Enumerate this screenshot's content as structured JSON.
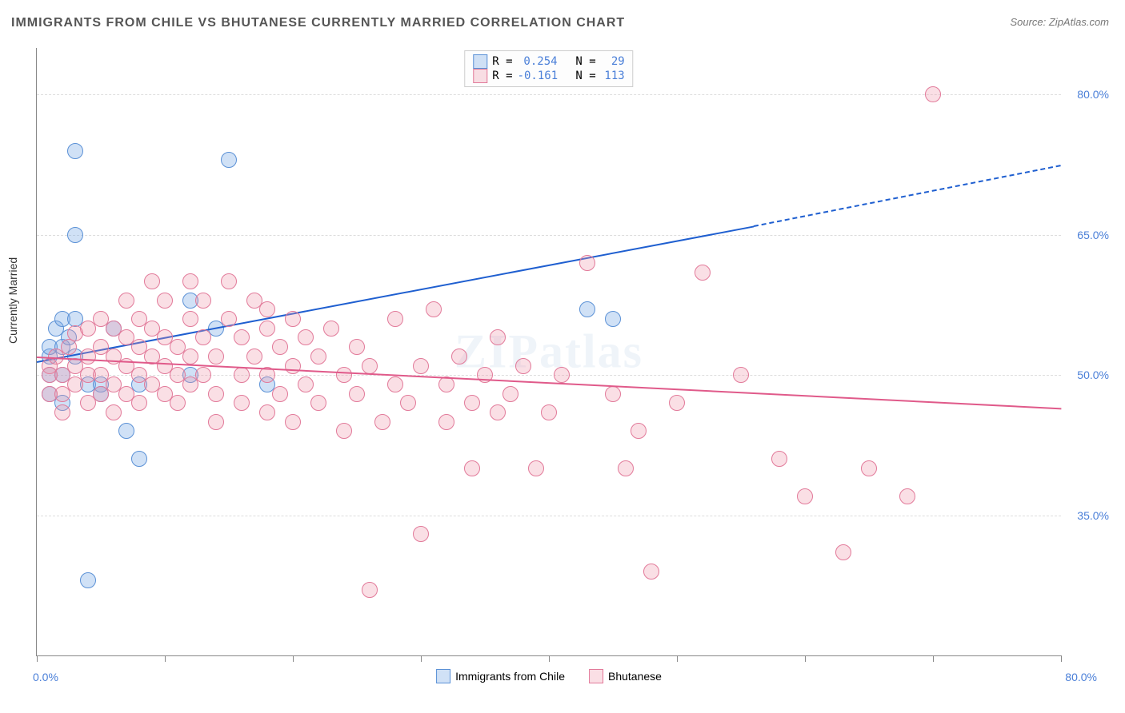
{
  "title": "IMMIGRANTS FROM CHILE VS BHUTANESE CURRENTLY MARRIED CORRELATION CHART",
  "source": "Source: ZipAtlas.com",
  "watermark": "ZIPatlas",
  "y_axis_label": "Currently Married",
  "chart": {
    "type": "scatter",
    "background_color": "#ffffff",
    "grid_color": "#dddddd",
    "axis_color": "#888888",
    "tick_label_color": "#4a7fd8",
    "tick_fontsize": 14,
    "title_fontsize": 16,
    "xlim": [
      0,
      80
    ],
    "ylim": [
      20,
      85
    ],
    "x_tick_start": "0.0%",
    "x_tick_end": "80.0%",
    "y_ticks": [
      {
        "value": 35,
        "label": "35.0%"
      },
      {
        "value": 50,
        "label": "50.0%"
      },
      {
        "value": 65,
        "label": "65.0%"
      },
      {
        "value": 80,
        "label": "80.0%"
      }
    ],
    "x_tick_positions": [
      0,
      10,
      20,
      30,
      40,
      50,
      60,
      70,
      80
    ],
    "series": [
      {
        "name": "Immigrants from Chile",
        "label": "Immigrants from Chile",
        "marker_fill": "rgba(120,170,230,0.35)",
        "marker_stroke": "#5b91d6",
        "marker_radius": 9,
        "line_color": "#1f5fd0",
        "line_width": 2,
        "R": "0.254",
        "N": "29",
        "trend_solid": {
          "x1": 0,
          "y1": 51.5,
          "x2": 56,
          "y2": 66
        },
        "trend_dashed": {
          "x1": 56,
          "y1": 66,
          "x2": 80,
          "y2": 72.5
        },
        "points": [
          [
            1,
            52
          ],
          [
            1,
            50
          ],
          [
            1,
            48
          ],
          [
            1,
            53
          ],
          [
            1.5,
            55
          ],
          [
            2,
            56
          ],
          [
            2,
            53
          ],
          [
            2,
            50
          ],
          [
            2,
            47
          ],
          [
            2.5,
            54
          ],
          [
            3,
            52
          ],
          [
            3,
            74
          ],
          [
            3,
            65
          ],
          [
            3,
            56
          ],
          [
            4,
            49
          ],
          [
            4,
            28
          ],
          [
            5,
            49
          ],
          [
            5,
            48
          ],
          [
            6,
            55
          ],
          [
            7,
            44
          ],
          [
            8,
            41
          ],
          [
            8,
            49
          ],
          [
            12,
            58
          ],
          [
            12,
            50
          ],
          [
            14,
            55
          ],
          [
            15,
            73
          ],
          [
            18,
            49
          ],
          [
            43,
            57
          ],
          [
            45,
            56
          ]
        ]
      },
      {
        "name": "Bhutanese",
        "label": "Bhutanese",
        "marker_fill": "rgba(240,150,170,0.30)",
        "marker_stroke": "#e27a9a",
        "marker_radius": 9,
        "line_color": "#e05a8a",
        "line_width": 2,
        "R": "-0.161",
        "N": "113",
        "trend_solid": {
          "x1": 0,
          "y1": 52,
          "x2": 80,
          "y2": 46.5
        },
        "points": [
          [
            1,
            51
          ],
          [
            1,
            50
          ],
          [
            1,
            48
          ],
          [
            1.5,
            52
          ],
          [
            2,
            50
          ],
          [
            2,
            48
          ],
          [
            2,
            46
          ],
          [
            2.5,
            53
          ],
          [
            3,
            51
          ],
          [
            3,
            49
          ],
          [
            3,
            54.5
          ],
          [
            4,
            55
          ],
          [
            4,
            52
          ],
          [
            4,
            50
          ],
          [
            4,
            47
          ],
          [
            5,
            56
          ],
          [
            5,
            53
          ],
          [
            5,
            50
          ],
          [
            5,
            48
          ],
          [
            6,
            55
          ],
          [
            6,
            52
          ],
          [
            6,
            49
          ],
          [
            6,
            46
          ],
          [
            7,
            54
          ],
          [
            7,
            51
          ],
          [
            7,
            48
          ],
          [
            7,
            58
          ],
          [
            8,
            56
          ],
          [
            8,
            53
          ],
          [
            8,
            50
          ],
          [
            8,
            47
          ],
          [
            9,
            55
          ],
          [
            9,
            52
          ],
          [
            9,
            49
          ],
          [
            9,
            60
          ],
          [
            10,
            54
          ],
          [
            10,
            51
          ],
          [
            10,
            48
          ],
          [
            10,
            58
          ],
          [
            11,
            53
          ],
          [
            11,
            50
          ],
          [
            11,
            47
          ],
          [
            12,
            60
          ],
          [
            12,
            56
          ],
          [
            12,
            52
          ],
          [
            12,
            49
          ],
          [
            13,
            58
          ],
          [
            13,
            54
          ],
          [
            13,
            50
          ],
          [
            14,
            52
          ],
          [
            14,
            48
          ],
          [
            14,
            45
          ],
          [
            15,
            60
          ],
          [
            15,
            56
          ],
          [
            16,
            54
          ],
          [
            16,
            50
          ],
          [
            16,
            47
          ],
          [
            17,
            58
          ],
          [
            17,
            52
          ],
          [
            18,
            55
          ],
          [
            18,
            50
          ],
          [
            18,
            46
          ],
          [
            18,
            57
          ],
          [
            19,
            53
          ],
          [
            19,
            48
          ],
          [
            20,
            56
          ],
          [
            20,
            51
          ],
          [
            20,
            45
          ],
          [
            21,
            54
          ],
          [
            21,
            49
          ],
          [
            22,
            52
          ],
          [
            22,
            47
          ],
          [
            23,
            55
          ],
          [
            24,
            50
          ],
          [
            24,
            44
          ],
          [
            25,
            53
          ],
          [
            25,
            48
          ],
          [
            26,
            51
          ],
          [
            26,
            27
          ],
          [
            27,
            45
          ],
          [
            28,
            49
          ],
          [
            28,
            56
          ],
          [
            29,
            47
          ],
          [
            30,
            51
          ],
          [
            30,
            33
          ],
          [
            31,
            57
          ],
          [
            32,
            49
          ],
          [
            32,
            45
          ],
          [
            33,
            52
          ],
          [
            34,
            47
          ],
          [
            34,
            40
          ],
          [
            35,
            50
          ],
          [
            36,
            46
          ],
          [
            36,
            54
          ],
          [
            37,
            48
          ],
          [
            38,
            51
          ],
          [
            39,
            40
          ],
          [
            40,
            46
          ],
          [
            41,
            50
          ],
          [
            43,
            62
          ],
          [
            45,
            48
          ],
          [
            46,
            40
          ],
          [
            47,
            44
          ],
          [
            48,
            29
          ],
          [
            50,
            47
          ],
          [
            52,
            61
          ],
          [
            55,
            50
          ],
          [
            58,
            41
          ],
          [
            60,
            37
          ],
          [
            63,
            31
          ],
          [
            65,
            40
          ],
          [
            68,
            37
          ],
          [
            70,
            80
          ]
        ]
      }
    ]
  }
}
